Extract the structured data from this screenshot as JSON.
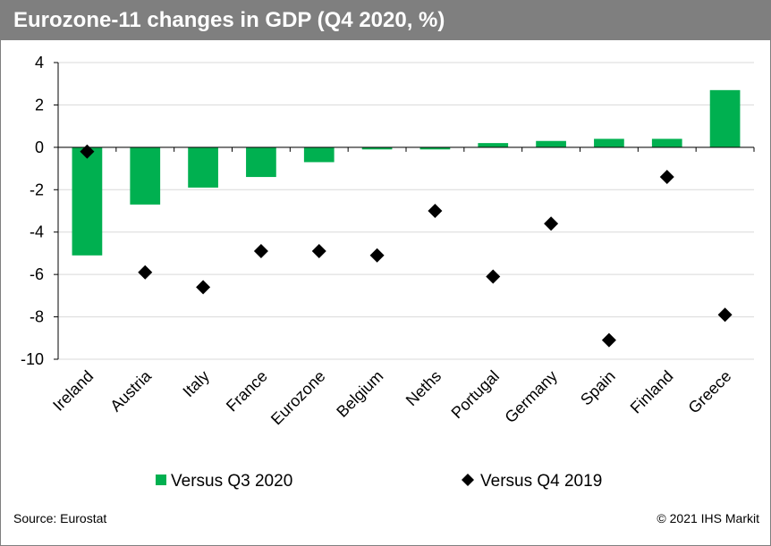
{
  "header": {
    "title": "Eurozone-11 changes in GDP (Q4 2020, %)"
  },
  "footer": {
    "source": "Source: Eurostat",
    "copyright": "© 2021 IHS Markit"
  },
  "chart_data": {
    "type": "bar",
    "title": "Eurozone-11 changes in GDP (Q4 2020, %)",
    "categories": [
      "Ireland",
      "Austria",
      "Italy",
      "France",
      "Eurozone",
      "Belgium",
      "Neths",
      "Portugal",
      "Germany",
      "Spain",
      "Finland",
      "Greece"
    ],
    "series": [
      {
        "name": "Versus Q3 2020",
        "type": "bar",
        "color": "#00b050",
        "values": [
          -5.1,
          -2.7,
          -1.9,
          -1.4,
          -0.7,
          -0.1,
          -0.1,
          0.2,
          0.3,
          0.4,
          0.4,
          2.7
        ]
      },
      {
        "name": "Versus Q4 2019",
        "type": "scatter",
        "marker": "diamond",
        "color": "#000000",
        "values": [
          -0.2,
          -5.9,
          -6.6,
          -4.9,
          -4.9,
          -5.1,
          -3.0,
          -6.1,
          -3.6,
          -9.1,
          -1.4,
          -7.9
        ]
      }
    ],
    "ylim": [
      -10,
      4
    ],
    "yticks": [
      "4",
      "2",
      "0",
      "-2",
      "-4",
      "-6",
      "-8",
      "-10"
    ],
    "grid": true,
    "legend": "bottom"
  }
}
